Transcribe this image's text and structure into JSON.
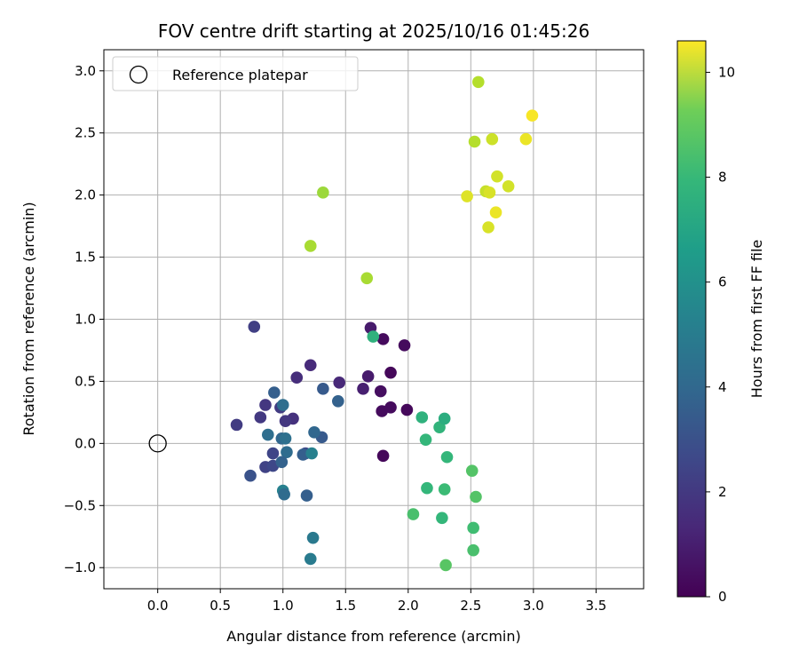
{
  "chart_data": {
    "type": "scatter",
    "title": "FOV centre drift starting at 2025/10/16 01:45:26",
    "xlabel": "Angular distance from reference (arcmin)",
    "ylabel": "Rotation from reference (arcmin)",
    "xlim": [
      -0.43,
      3.88
    ],
    "ylim": [
      -1.17,
      3.17
    ],
    "xticks": [
      0.0,
      0.5,
      1.0,
      1.5,
      2.0,
      2.5,
      3.0,
      3.5
    ],
    "xtick_labels": [
      "0.0",
      "0.5",
      "1.0",
      "1.5",
      "2.0",
      "2.5",
      "3.0",
      "3.5"
    ],
    "yticks": [
      -1.0,
      -0.5,
      0.0,
      0.5,
      1.0,
      1.5,
      2.0,
      2.5,
      3.0
    ],
    "ytick_labels": [
      "−1.0",
      "−0.5",
      "0.0",
      "0.5",
      "1.0",
      "1.5",
      "2.0",
      "2.5",
      "3.0"
    ],
    "grid": true,
    "legend": {
      "position": "top-left",
      "entries": [
        "Reference platepar"
      ]
    },
    "reference_point": {
      "x": 0.0,
      "y": 0.0
    },
    "colorbar": {
      "label": "Hours from first FF file",
      "range": [
        0,
        10.6
      ],
      "ticks": [
        0,
        2,
        4,
        6,
        8,
        10
      ],
      "tick_labels": [
        "0",
        "2",
        "4",
        "6",
        "8",
        "10"
      ],
      "colormap": "viridis"
    },
    "points": [
      {
        "x": 1.8,
        "y": -0.1,
        "t": 0.2
      },
      {
        "x": 1.79,
        "y": 0.26,
        "t": 0.3
      },
      {
        "x": 1.86,
        "y": 0.29,
        "t": 0.3
      },
      {
        "x": 1.99,
        "y": 0.27,
        "t": 0.2
      },
      {
        "x": 1.78,
        "y": 0.42,
        "t": 0.4
      },
      {
        "x": 1.86,
        "y": 0.57,
        "t": 0.2
      },
      {
        "x": 1.8,
        "y": 0.84,
        "t": 0.3
      },
      {
        "x": 1.97,
        "y": 0.79,
        "t": 0.3
      },
      {
        "x": 1.7,
        "y": 0.93,
        "t": 0.8
      },
      {
        "x": 1.68,
        "y": 0.54,
        "t": 0.8
      },
      {
        "x": 1.64,
        "y": 0.44,
        "t": 0.9
      },
      {
        "x": 1.45,
        "y": 0.49,
        "t": 1.2
      },
      {
        "x": 1.22,
        "y": 0.63,
        "t": 1.3
      },
      {
        "x": 1.11,
        "y": 0.53,
        "t": 1.4
      },
      {
        "x": 1.08,
        "y": 0.2,
        "t": 1.5
      },
      {
        "x": 1.02,
        "y": 0.18,
        "t": 1.7
      },
      {
        "x": 0.98,
        "y": 0.29,
        "t": 1.9
      },
      {
        "x": 0.86,
        "y": 0.31,
        "t": 1.7
      },
      {
        "x": 0.82,
        "y": 0.21,
        "t": 1.8
      },
      {
        "x": 0.63,
        "y": 0.15,
        "t": 1.9
      },
      {
        "x": 0.77,
        "y": 0.94,
        "t": 2.0
      },
      {
        "x": 0.92,
        "y": -0.08,
        "t": 2.2
      },
      {
        "x": 0.86,
        "y": -0.19,
        "t": 2.1
      },
      {
        "x": 0.92,
        "y": -0.18,
        "t": 2.3
      },
      {
        "x": 1.18,
        "y": -0.08,
        "t": 2.4
      },
      {
        "x": 0.74,
        "y": -0.26,
        "t": 2.7
      },
      {
        "x": 0.93,
        "y": 0.41,
        "t": 3.2
      },
      {
        "x": 1.0,
        "y": 0.31,
        "t": 3.8
      },
      {
        "x": 1.32,
        "y": 0.44,
        "t": 3.0
      },
      {
        "x": 1.44,
        "y": 0.34,
        "t": 3.3
      },
      {
        "x": 1.31,
        "y": 0.05,
        "t": 3.0
      },
      {
        "x": 1.25,
        "y": 0.09,
        "t": 3.5
      },
      {
        "x": 0.88,
        "y": 0.07,
        "t": 3.8
      },
      {
        "x": 0.99,
        "y": 0.04,
        "t": 3.5
      },
      {
        "x": 1.02,
        "y": 0.04,
        "t": 3.9
      },
      {
        "x": 1.03,
        "y": -0.07,
        "t": 3.7
      },
      {
        "x": 0.99,
        "y": -0.15,
        "t": 3.3
      },
      {
        "x": 1.16,
        "y": -0.09,
        "t": 3.2
      },
      {
        "x": 1.23,
        "y": -0.08,
        "t": 4.6
      },
      {
        "x": 1.0,
        "y": -0.38,
        "t": 4.6
      },
      {
        "x": 1.01,
        "y": -0.41,
        "t": 3.7
      },
      {
        "x": 1.19,
        "y": -0.42,
        "t": 3.2
      },
      {
        "x": 1.24,
        "y": -0.76,
        "t": 4.3
      },
      {
        "x": 1.22,
        "y": -0.93,
        "t": 4.4
      },
      {
        "x": 1.72,
        "y": 0.86,
        "t": 6.8
      },
      {
        "x": 2.11,
        "y": 0.21,
        "t": 6.8
      },
      {
        "x": 2.14,
        "y": 0.03,
        "t": 7.0
      },
      {
        "x": 2.25,
        "y": 0.13,
        "t": 6.9
      },
      {
        "x": 2.29,
        "y": 0.2,
        "t": 6.6
      },
      {
        "x": 2.31,
        "y": -0.11,
        "t": 7.0
      },
      {
        "x": 2.51,
        "y": -0.22,
        "t": 7.7
      },
      {
        "x": 2.54,
        "y": -0.43,
        "t": 7.7
      },
      {
        "x": 2.15,
        "y": -0.36,
        "t": 7.0
      },
      {
        "x": 2.29,
        "y": -0.37,
        "t": 7.2
      },
      {
        "x": 2.04,
        "y": -0.57,
        "t": 7.5
      },
      {
        "x": 2.27,
        "y": -0.6,
        "t": 7.0
      },
      {
        "x": 2.52,
        "y": -0.68,
        "t": 7.3
      },
      {
        "x": 2.52,
        "y": -0.86,
        "t": 7.5
      },
      {
        "x": 2.3,
        "y": -0.98,
        "t": 7.8
      },
      {
        "x": 1.22,
        "y": 1.59,
        "t": 9.2
      },
      {
        "x": 1.32,
        "y": 2.02,
        "t": 9.0
      },
      {
        "x": 1.67,
        "y": 1.33,
        "t": 9.2
      },
      {
        "x": 2.56,
        "y": 2.91,
        "t": 9.4
      },
      {
        "x": 2.53,
        "y": 2.43,
        "t": 9.4
      },
      {
        "x": 2.67,
        "y": 2.45,
        "t": 9.8
      },
      {
        "x": 2.71,
        "y": 2.15,
        "t": 9.9
      },
      {
        "x": 2.8,
        "y": 2.07,
        "t": 9.9
      },
      {
        "x": 2.62,
        "y": 2.03,
        "t": 9.7
      },
      {
        "x": 2.65,
        "y": 2.02,
        "t": 10.0
      },
      {
        "x": 2.47,
        "y": 1.99,
        "t": 10.1
      },
      {
        "x": 2.7,
        "y": 1.86,
        "t": 10.3
      },
      {
        "x": 2.64,
        "y": 1.74,
        "t": 10.0
      },
      {
        "x": 2.94,
        "y": 2.45,
        "t": 10.3
      },
      {
        "x": 2.99,
        "y": 2.64,
        "t": 10.5
      }
    ]
  }
}
